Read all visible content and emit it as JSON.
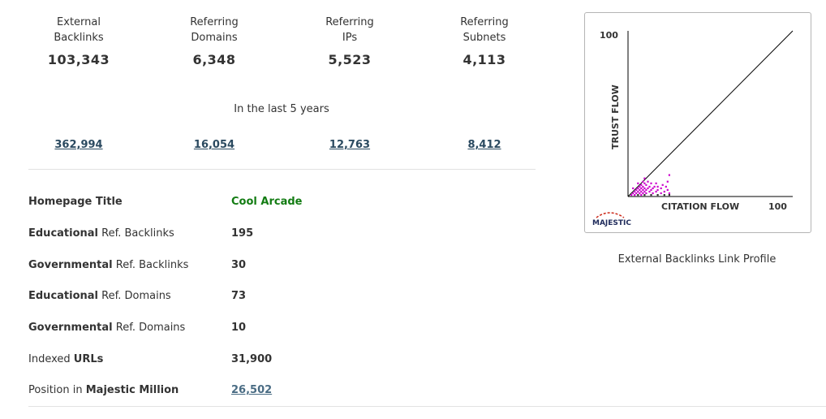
{
  "stats": [
    {
      "label": "External\nBacklinks",
      "value": "103,343",
      "history": "362,994"
    },
    {
      "label": "Referring\nDomains",
      "value": "6,348",
      "history": "16,054"
    },
    {
      "label": "Referring\nIPs",
      "value": "5,523",
      "history": "12,763"
    },
    {
      "label": "Referring\nSubnets",
      "value": "4,113",
      "history": "8,412"
    }
  ],
  "period_text": "In the last 5 years",
  "info": {
    "homepage_title": {
      "label_bold": "Homepage Title",
      "value": "Cool Arcade",
      "value_color": "#137c13"
    },
    "edu_backlinks": {
      "label_bold": "Educational",
      "label_rest": " Ref. Backlinks",
      "value": "195"
    },
    "gov_backlinks": {
      "label_bold": "Governmental",
      "label_rest": " Ref. Backlinks",
      "value": "30"
    },
    "edu_domains": {
      "label_bold": "Educational",
      "label_rest": " Ref. Domains",
      "value": "73"
    },
    "gov_domains": {
      "label_bold": "Governmental",
      "label_rest": " Ref. Domains",
      "value": "10"
    },
    "indexed_urls": {
      "label_pre": "Indexed ",
      "label_bold": "URLs",
      "value": "31,900"
    },
    "majestic_million": {
      "label_pre": "Position in ",
      "label_bold": "Majestic Million",
      "value": "26,502"
    }
  },
  "chart_data": {
    "type": "scatter",
    "xlabel": "CITATION FLOW",
    "ylabel": "TRUST FLOW",
    "x_max_label": "100",
    "y_max_label": "100",
    "xlim": [
      0,
      100
    ],
    "ylim": [
      0,
      100
    ],
    "diagonal": true,
    "point_color": "#cc00cc",
    "points": [
      [
        2,
        1
      ],
      [
        3,
        2
      ],
      [
        4,
        3
      ],
      [
        4,
        1
      ],
      [
        5,
        2
      ],
      [
        5,
        4
      ],
      [
        6,
        3
      ],
      [
        6,
        5
      ],
      [
        7,
        2
      ],
      [
        7,
        4
      ],
      [
        7,
        6
      ],
      [
        8,
        3
      ],
      [
        8,
        5
      ],
      [
        8,
        1
      ],
      [
        9,
        2
      ],
      [
        9,
        4
      ],
      [
        9,
        6
      ],
      [
        9,
        9
      ],
      [
        10,
        3
      ],
      [
        10,
        5
      ],
      [
        10,
        11
      ],
      [
        11,
        4
      ],
      [
        11,
        7
      ],
      [
        11,
        2
      ],
      [
        12,
        5
      ],
      [
        12,
        9
      ],
      [
        13,
        3
      ],
      [
        13,
        6
      ],
      [
        14,
        4
      ],
      [
        14,
        8
      ],
      [
        15,
        5
      ],
      [
        15,
        2
      ],
      [
        16,
        6
      ],
      [
        17,
        3
      ],
      [
        17,
        8
      ],
      [
        18,
        4
      ],
      [
        18,
        6
      ],
      [
        20,
        5
      ],
      [
        20,
        2
      ],
      [
        21,
        7
      ],
      [
        22,
        3
      ],
      [
        23,
        6
      ],
      [
        24,
        4
      ],
      [
        25,
        2
      ],
      [
        24,
        9
      ],
      [
        6,
        8
      ],
      [
        8,
        7
      ],
      [
        10,
        8
      ],
      [
        3,
        5
      ],
      [
        25,
        13
      ]
    ],
    "dark_points": [
      [
        6,
        1
      ],
      [
        10,
        1
      ],
      [
        14,
        1
      ],
      [
        18,
        1
      ],
      [
        22,
        1
      ],
      [
        25,
        1
      ]
    ],
    "logo_text": "MAJESTIC",
    "caption": "External Backlinks Link Profile"
  }
}
